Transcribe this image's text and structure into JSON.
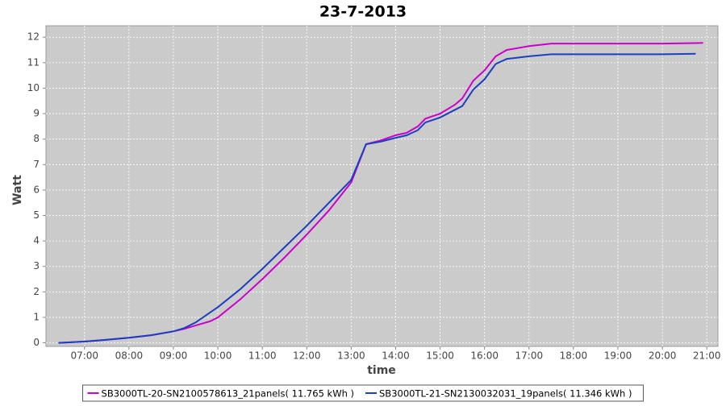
{
  "chart_data": {
    "type": "line",
    "title": "23-7-2013",
    "x_label": "time",
    "y_label": "Watt",
    "x": [
      "06:25",
      "07:00",
      "07:30",
      "08:00",
      "08:30",
      "09:00",
      "09:15",
      "09:30",
      "09:50",
      "10:00",
      "10:30",
      "11:00",
      "11:30",
      "12:00",
      "12:30",
      "13:00",
      "13:20",
      "13:40",
      "14:00",
      "14:15",
      "14:30",
      "14:40",
      "15:00",
      "15:20",
      "15:30",
      "15:45",
      "16:00",
      "16:15",
      "16:30",
      "17:00",
      "17:30",
      "18:00",
      "19:00",
      "20:00",
      "20:45",
      "20:55"
    ],
    "series": [
      {
        "name": "SB3000TL-20-SN2100578613_21panels( 11.765 kWh )",
        "color": "#cc00cc",
        "values": [
          0,
          0.05,
          0.12,
          0.2,
          0.3,
          0.45,
          0.55,
          0.68,
          0.85,
          1.0,
          1.7,
          2.5,
          3.35,
          4.25,
          5.2,
          6.3,
          7.8,
          7.95,
          8.15,
          8.25,
          8.5,
          8.8,
          9.0,
          9.35,
          9.6,
          10.3,
          10.7,
          11.25,
          11.5,
          11.65,
          11.75,
          11.75,
          11.75,
          11.75,
          11.77,
          11.78
        ]
      },
      {
        "name": "SB3000TL-21-SN2130032031_19panels( 11.346 kWh )",
        "color": "#1a3fbf",
        "values": [
          0,
          0.05,
          0.12,
          0.2,
          0.3,
          0.45,
          0.58,
          0.8,
          1.2,
          1.4,
          2.1,
          2.9,
          3.75,
          4.6,
          5.5,
          6.4,
          7.8,
          7.9,
          8.05,
          8.15,
          8.35,
          8.65,
          8.85,
          9.15,
          9.3,
          9.95,
          10.35,
          10.95,
          11.15,
          11.25,
          11.33,
          11.33,
          11.33,
          11.33,
          11.35,
          null
        ]
      }
    ],
    "xlim": [
      "06:08",
      "21:15"
    ],
    "xticks": [
      "07:00",
      "08:00",
      "09:00",
      "10:00",
      "11:00",
      "12:00",
      "13:00",
      "14:00",
      "15:00",
      "16:00",
      "17:00",
      "18:00",
      "19:00",
      "20:00",
      "21:00"
    ],
    "ylim": [
      -0.14,
      12.45
    ],
    "yticks": [
      0,
      1,
      2,
      3,
      4,
      5,
      6,
      7,
      8,
      9,
      10,
      11,
      12
    ],
    "grid": true
  }
}
